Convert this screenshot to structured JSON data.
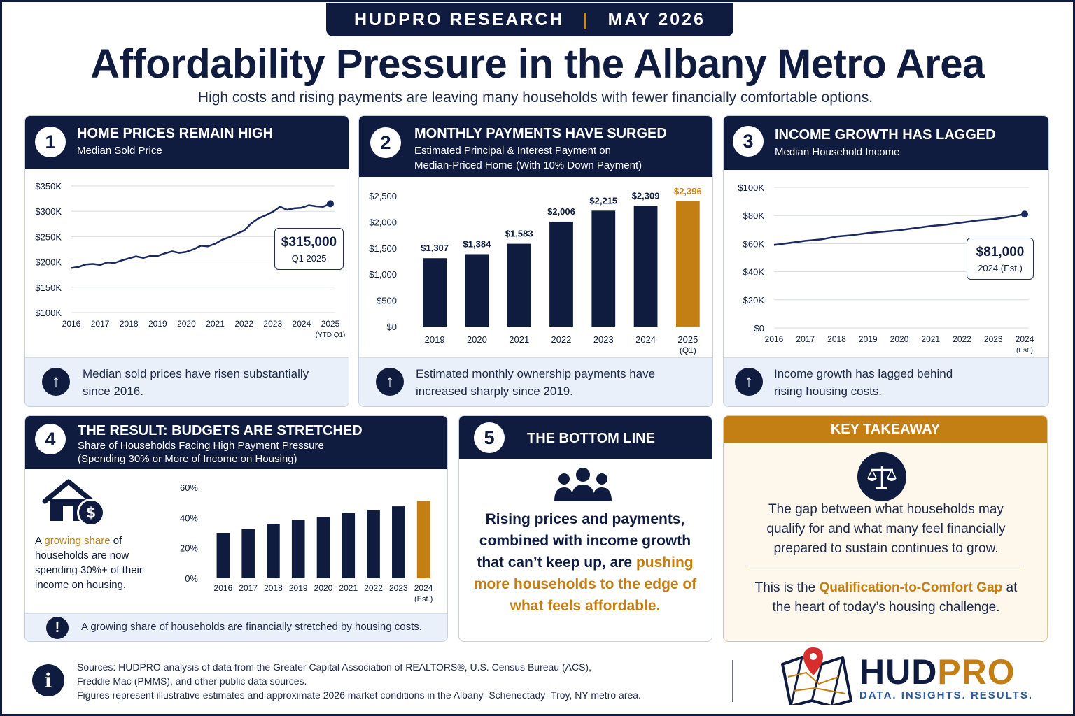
{
  "header": {
    "org": "HUDPRO RESEARCH",
    "separator": "|",
    "date": "MAY 2026"
  },
  "title": "Affordability Pressure in the Albany Metro Area",
  "subtitle": "High costs and rising payments are leaving many households with fewer financially comfortable options.",
  "panels": {
    "p1": {
      "num": "1",
      "title": "HOME PRICES REMAIN HIGH",
      "subtitle": "Median Sold Price",
      "callout_value": "$315,000",
      "callout_label": "Q1 2025",
      "note": "Median sold prices have risen substantially since 2016."
    },
    "p2": {
      "num": "2",
      "title": "MONTHLY PAYMENTS HAVE SURGED",
      "subtitle_1": "Estimated Principal & Interest Payment on",
      "subtitle_2": "Median-Priced Home (With 10% Down Payment)",
      "note": "Estimated monthly ownership payments have increased sharply since 2019."
    },
    "p3": {
      "num": "3",
      "title": "INCOME GROWTH HAS LAGGED",
      "subtitle": "Median Household Income",
      "callout_value": "$81,000",
      "callout_label": "2024 (Est.)",
      "note": "Income growth has lagged behind rising housing costs."
    },
    "p4": {
      "num": "4",
      "title": "THE RESULT: BUDGETS ARE STRETCHED",
      "subtitle_1": "Share of Households Facing High Payment Pressure",
      "subtitle_2": "(Spending 30% or More of Income on Housing)",
      "side_a": "A ",
      "side_highlight": "growing share",
      "side_b": "of households are now spending 30%+ of their income on housing.",
      "note": "A growing share of households are financially stretched by housing costs."
    },
    "p5": {
      "num": "5",
      "title": "THE BOTTOM LINE",
      "text_a": "Rising prices and payments, combined with income growth that can’t keep up, are ",
      "text_highlight": "pushing more households to the edge of what feels affordable."
    },
    "key": {
      "title": "KEY TAKEAWAY",
      "text1": "The gap between what households may qualify for and what many feel financially prepared to sustain continues to grow.",
      "text2_a": "This is the ",
      "text2_highlight": "Qualification-to-Comfort Gap",
      "text2_b": " at the heart of today’s housing challenge."
    }
  },
  "footer": {
    "sources_1": "Sources: HUDPRO analysis of data from the Greater Capital Association of REALTORS®, U.S. Census Bureau (ACS),",
    "sources_2": "Freddie Mac (PMMS), and other public data sources.",
    "sources_3": "Figures represent illustrative estimates and approximate 2026 market conditions in the Albany–Schenectady–Troy, NY metro area.",
    "logo_a": "HUD",
    "logo_b": "PRO",
    "tagline": "DATA. INSIGHTS. RESULTS."
  },
  "colors": {
    "navy": "#0f1c3f",
    "gold": "#c47f14",
    "note_bg": "#eaf0fa"
  },
  "icons": [
    "arrow-up-icon",
    "house-dollar-icon",
    "exclamation-icon",
    "people-icon",
    "scales-icon",
    "info-icon",
    "map-pin-icon"
  ],
  "chart_data": [
    {
      "type": "line",
      "title": "Median Sold Price",
      "x": [
        2016,
        2016.25,
        2016.5,
        2016.75,
        2017,
        2017.25,
        2017.5,
        2017.75,
        2018,
        2018.25,
        2018.5,
        2018.75,
        2019,
        2019.25,
        2019.5,
        2019.75,
        2020,
        2020.25,
        2020.5,
        2020.75,
        2021,
        2021.25,
        2021.5,
        2021.75,
        2022,
        2022.25,
        2022.5,
        2022.75,
        2023,
        2023.25,
        2023.5,
        2023.75,
        2024,
        2024.25,
        2024.5,
        2024.75,
        2025
      ],
      "y": [
        188000,
        190000,
        195000,
        196000,
        194000,
        199000,
        198000,
        203000,
        207000,
        211000,
        208000,
        212000,
        212000,
        217000,
        221000,
        218000,
        220000,
        225000,
        232000,
        231000,
        236000,
        244000,
        249000,
        256000,
        262000,
        276000,
        286000,
        292000,
        299000,
        309000,
        303000,
        306000,
        307000,
        312000,
        310000,
        309000,
        315000
      ],
      "xticks": [
        "2016",
        "2017",
        "2018",
        "2019",
        "2020",
        "2021",
        "2022",
        "2023",
        "2024",
        "2025"
      ],
      "xtick_note": "(YTD Q1)",
      "yticks": [
        "$100K",
        "$150K",
        "$200K",
        "$250K",
        "$300K",
        "$350K"
      ],
      "ylim": [
        100000,
        350000
      ],
      "grid": "horizontal"
    },
    {
      "type": "bar",
      "title": "Estimated Principal & Interest Payment",
      "categories": [
        "2019",
        "2020",
        "2021",
        "2022",
        "2023",
        "2024",
        "2025"
      ],
      "category_note": "(Q1)",
      "values": [
        1307,
        1384,
        1583,
        2006,
        2215,
        2309,
        2396
      ],
      "labels": [
        "$1,307",
        "$1,384",
        "$1,583",
        "$2,006",
        "$2,215",
        "$2,309",
        "$2,396"
      ],
      "yticks": [
        "$0",
        "$500",
        "$1,000",
        "$1,500",
        "$2,000",
        "$2,500"
      ],
      "ylim": [
        0,
        2500
      ],
      "highlight_last": true
    },
    {
      "type": "line",
      "title": "Median Household Income",
      "x": [
        2016,
        2016.5,
        2017,
        2017.5,
        2018,
        2018.5,
        2019,
        2019.5,
        2020,
        2020.5,
        2021,
        2021.5,
        2022,
        2022.5,
        2023,
        2023.5,
        2024
      ],
      "y": [
        59000,
        60500,
        62000,
        63000,
        65000,
        66000,
        67500,
        68500,
        69500,
        71000,
        72500,
        73500,
        75000,
        76500,
        77500,
        79000,
        81000
      ],
      "xticks": [
        "2016",
        "2017",
        "2018",
        "2019",
        "2020",
        "2021",
        "2022",
        "2023",
        "2024"
      ],
      "xtick_note": "(Est.)",
      "yticks": [
        "$0",
        "$20K",
        "$40K",
        "$60K",
        "$80K",
        "$100K"
      ],
      "ylim": [
        0,
        100000
      ]
    },
    {
      "type": "bar",
      "title": "Share of Households Facing High Payment Pressure",
      "categories": [
        "2016",
        "2017",
        "2018",
        "2019",
        "2020",
        "2021",
        "2022",
        "2023",
        "2024"
      ],
      "category_note": "(Est.)",
      "values": [
        30,
        32.5,
        36,
        38.5,
        40.5,
        43,
        45,
        47.5,
        51
      ],
      "yticks": [
        "0%",
        "20%",
        "40%",
        "60%"
      ],
      "ylim": [
        0,
        60
      ],
      "highlight_last": true
    }
  ]
}
